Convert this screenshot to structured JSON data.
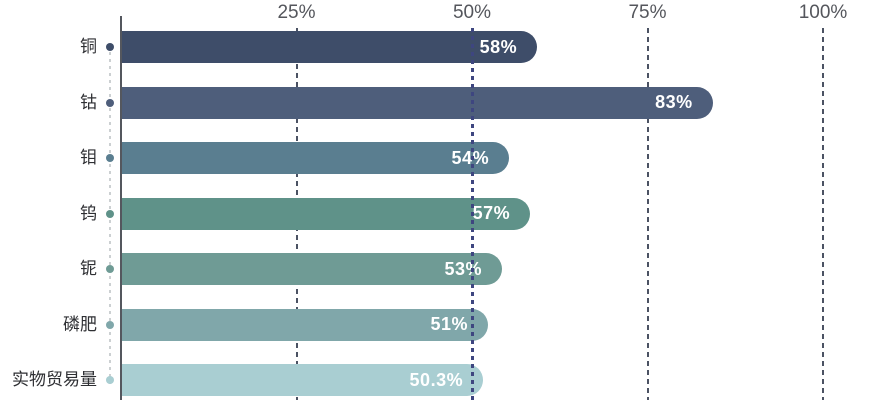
{
  "chart_data": {
    "type": "bar",
    "orientation": "horizontal",
    "title": "",
    "xlabel": "",
    "ylabel": "",
    "xlim": [
      0,
      100
    ],
    "grid": true,
    "categories": [
      "铜",
      "钴",
      "钼",
      "钨",
      "铌",
      "磷肥",
      "实物贸易量"
    ],
    "values": [
      58,
      83,
      54,
      57,
      53,
      51,
      50.3
    ],
    "value_labels": [
      "58%",
      "83%",
      "54%",
      "57%",
      "53%",
      "51%",
      "50.3%"
    ],
    "bar_colors": [
      "#3e4d69",
      "#4e5e7b",
      "#5a7e90",
      "#5f9289",
      "#6f9b95",
      "#80a7aa",
      "#a9ced2"
    ],
    "x_ticks": [
      {
        "label": "25%",
        "value": 25
      },
      {
        "label": "50%",
        "value": 50
      },
      {
        "label": "75%",
        "value": 75
      },
      {
        "label": "100%",
        "value": 100
      }
    ],
    "highlight_gridline_value": 50
  },
  "style": {
    "axis_line_color": "#54575e",
    "gridline_color": "#4b5263",
    "highlight_gridline_color": "#3e4680",
    "tick_label_color": "#54565c",
    "category_label_color": "#2e2f33",
    "value_label_color": "#ffffff",
    "leader_dot_line_color": "#ccd0d2",
    "background": "#ffffff"
  },
  "layout_hints": {
    "legend": "none",
    "value_labels_inside_bar_end": true,
    "rounded_bar_right_cap": true
  }
}
